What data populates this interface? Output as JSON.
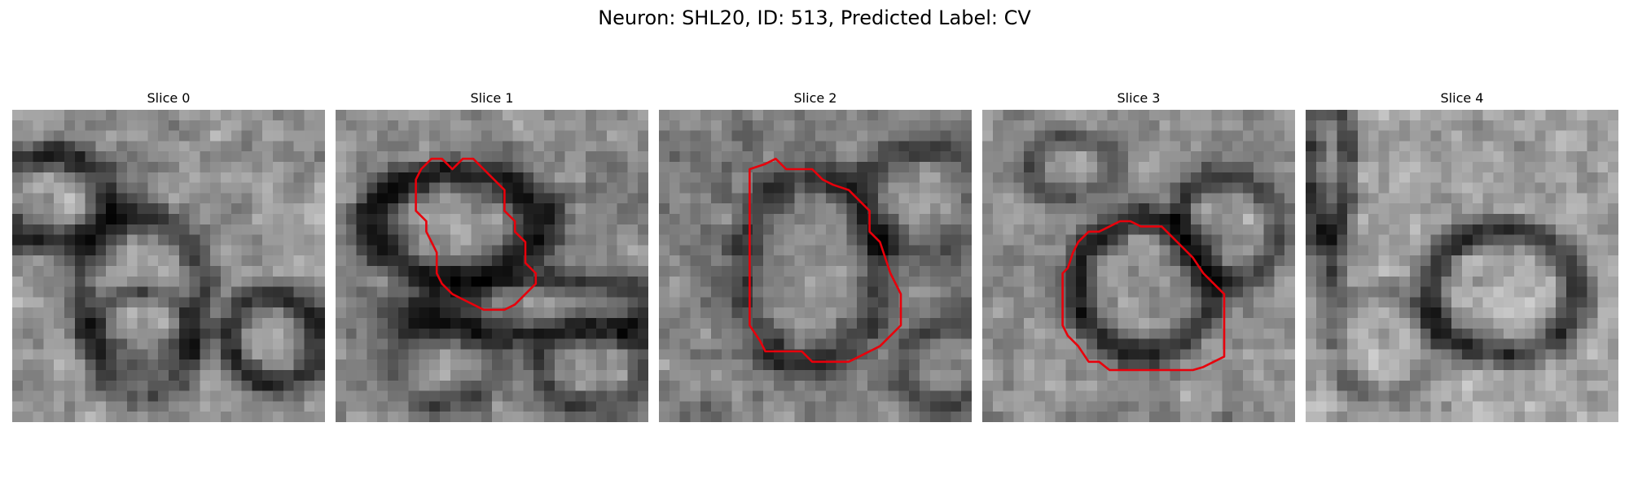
{
  "figure": {
    "title": "Neuron: SHL20, ID: 513, Predicted Label: CV"
  },
  "overlay_color": "#e8000b",
  "panels": [
    {
      "title": "Slice 0",
      "has_contour": false
    },
    {
      "title": "Slice 1",
      "has_contour": true
    },
    {
      "title": "Slice 2",
      "has_contour": true
    },
    {
      "title": "Slice 3",
      "has_contour": true
    },
    {
      "title": "Slice 4",
      "has_contour": false
    }
  ]
}
